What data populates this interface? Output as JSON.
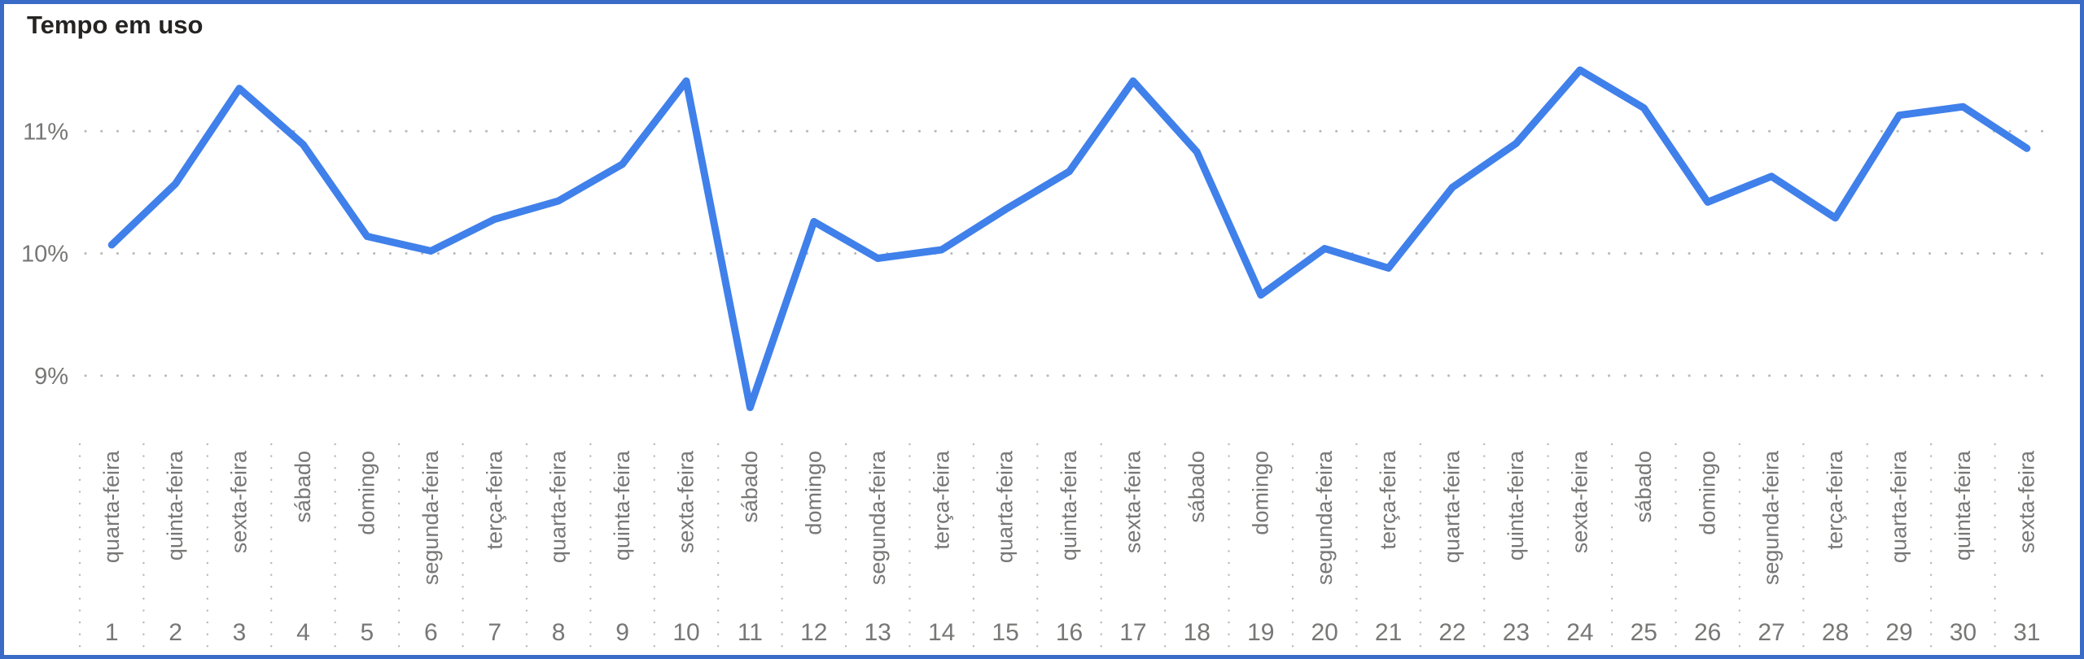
{
  "header": {
    "title": "Tempo em uso"
  },
  "colors": {
    "line": "#4080EA",
    "frame_border": "#3A6BC6",
    "title_text": "#252423",
    "axis_label": "#777776",
    "grid_dot": "#B9B9B9"
  },
  "chart_data": {
    "type": "line",
    "title": "Tempo em uso",
    "x": [
      1,
      2,
      3,
      4,
      5,
      6,
      7,
      8,
      9,
      10,
      11,
      12,
      13,
      14,
      15,
      16,
      17,
      18,
      19,
      20,
      21,
      22,
      23,
      24,
      25,
      26,
      27,
      28,
      29,
      30,
      31
    ],
    "x_weekdays": [
      "quarta-feira",
      "quinta-feira",
      "sexta-feira",
      "sábado",
      "domingo",
      "segunda-feira",
      "terça-feira",
      "quarta-feira",
      "quinta-feira",
      "sexta-feira",
      "sábado",
      "domingo",
      "segunda-feira",
      "terça-feira",
      "quarta-feira",
      "quinta-feira",
      "sexta-feira",
      "sábado",
      "domingo",
      "segunda-feira",
      "terça-feira",
      "quarta-feira",
      "quinta-feira",
      "sexta-feira",
      "sábado",
      "domingo",
      "segunda-feira",
      "terça-feira",
      "quarta-feira",
      "quinta-feira",
      "sexta-feira"
    ],
    "series": [
      {
        "name": "Tempo em uso",
        "values": [
          10.07,
          10.57,
          11.35,
          10.89,
          10.14,
          10.02,
          10.28,
          10.43,
          10.73,
          11.41,
          8.74,
          10.26,
          9.96,
          10.03,
          10.36,
          10.67,
          11.41,
          10.83,
          9.66,
          10.04,
          9.88,
          10.54,
          10.9,
          11.5,
          11.19,
          10.42,
          10.63,
          10.29,
          11.13,
          11.2,
          10.86
        ]
      }
    ],
    "unit": "%",
    "y_ticks": [
      {
        "label": "11%",
        "value": 11
      },
      {
        "label": "10%",
        "value": 10
      },
      {
        "label": "9%",
        "value": 9
      }
    ],
    "ylim": [
      8.55,
      11.7
    ],
    "grid": {
      "horizontal": "dotted",
      "vertical": "dotted-label-area-only"
    },
    "legend_position": "none"
  }
}
